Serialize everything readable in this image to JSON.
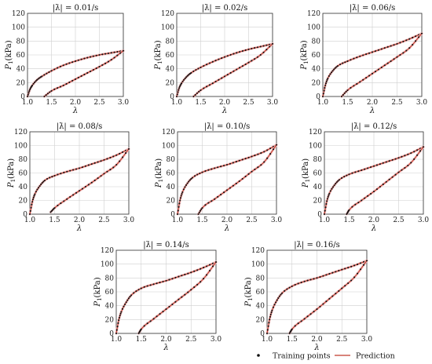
{
  "chart_data": [
    {
      "type": "line",
      "title": "|λ̇| = 0.01/s",
      "xlabel": "λ",
      "ylabel_main": "P",
      "ylabel_sub": "1",
      "ylabel_unit": "(kPa)",
      "xlim": [
        1.0,
        3.0
      ],
      "ylim": [
        0,
        120
      ],
      "xticks": [
        "1.0",
        "1.5",
        "2.0",
        "2.5",
        "3.0"
      ],
      "yticks": [
        "0",
        "20",
        "40",
        "60",
        "80",
        "100",
        "120"
      ],
      "grid": true,
      "series": [
        {
          "name": "Training points",
          "type": "scatter"
        },
        {
          "name": "Prediction",
          "type": "line"
        }
      ],
      "loading": {
        "x": [
          1.0,
          1.05,
          1.1,
          1.2,
          1.3,
          1.5,
          1.75,
          2.0,
          2.25,
          2.5,
          2.75,
          3.0
        ],
        "y": [
          0,
          10,
          16,
          24,
          29,
          37,
          45,
          51,
          56,
          60,
          63,
          66
        ]
      },
      "unloading": {
        "x": [
          1.35,
          1.5,
          1.75,
          2.0,
          2.25,
          2.5,
          2.75,
          3.0
        ],
        "y": [
          0,
          8,
          16,
          25,
          34,
          43,
          53,
          66
        ]
      }
    },
    {
      "type": "line",
      "title": "|λ̇| = 0.02/s",
      "xlabel": "λ",
      "ylabel_main": "P",
      "ylabel_sub": "1",
      "ylabel_unit": "(kPa)",
      "xlim": [
        1.0,
        3.0
      ],
      "ylim": [
        0,
        120
      ],
      "xticks": [
        "1.0",
        "1.5",
        "2.0",
        "2.5",
        "3.0"
      ],
      "yticks": [
        "0",
        "20",
        "40",
        "60",
        "80",
        "100",
        "120"
      ],
      "grid": true,
      "series": [
        {
          "name": "Training points",
          "type": "scatter"
        },
        {
          "name": "Prediction",
          "type": "line"
        }
      ],
      "loading": {
        "x": [
          1.0,
          1.05,
          1.1,
          1.2,
          1.3,
          1.5,
          1.75,
          2.0,
          2.25,
          2.5,
          2.75,
          3.0
        ],
        "y": [
          0,
          12,
          19,
          28,
          34,
          42,
          50,
          57,
          63,
          68,
          72,
          76
        ]
      },
      "unloading": {
        "x": [
          1.35,
          1.5,
          1.75,
          2.0,
          2.25,
          2.5,
          2.75,
          3.0
        ],
        "y": [
          0,
          9,
          19,
          29,
          39,
          49,
          60,
          76
        ]
      }
    },
    {
      "type": "line",
      "title": "|λ̇| = 0.06/s",
      "xlabel": "λ",
      "ylabel_main": "P",
      "ylabel_sub": "1",
      "ylabel_unit": "(kPa)",
      "xlim": [
        1.0,
        3.0
      ],
      "ylim": [
        0,
        120
      ],
      "xticks": [
        "1.0",
        "1.5",
        "2.0",
        "2.5",
        "3.0"
      ],
      "yticks": [
        "0",
        "20",
        "40",
        "60",
        "80",
        "100",
        "120"
      ],
      "grid": true,
      "series": [
        {
          "name": "Training points",
          "type": "scatter"
        },
        {
          "name": "Prediction",
          "type": "line"
        }
      ],
      "loading": {
        "x": [
          1.0,
          1.05,
          1.1,
          1.2,
          1.3,
          1.5,
          1.75,
          2.0,
          2.25,
          2.5,
          2.75,
          3.0
        ],
        "y": [
          0,
          16,
          26,
          37,
          44,
          51,
          58,
          64,
          70,
          76,
          83,
          91
        ]
      },
      "unloading": {
        "x": [
          1.38,
          1.5,
          1.75,
          2.0,
          2.25,
          2.5,
          2.75,
          3.0
        ],
        "y": [
          0,
          9,
          21,
          33,
          45,
          57,
          70,
          91
        ]
      }
    },
    {
      "type": "line",
      "title": "|λ̇| = 0.08/s",
      "xlabel": "λ",
      "ylabel_main": "P",
      "ylabel_sub": "1",
      "ylabel_unit": "(kPa)",
      "xlim": [
        1.0,
        3.0
      ],
      "ylim": [
        0,
        120
      ],
      "xticks": [
        "1.0",
        "1.5",
        "2.0",
        "2.5",
        "3.0"
      ],
      "yticks": [
        "0",
        "20",
        "40",
        "60",
        "80",
        "100",
        "120"
      ],
      "grid": true,
      "series": [
        {
          "name": "Training points",
          "type": "scatter"
        },
        {
          "name": "Prediction",
          "type": "line"
        }
      ],
      "loading": {
        "x": [
          1.0,
          1.05,
          1.1,
          1.2,
          1.3,
          1.5,
          1.75,
          2.0,
          2.25,
          2.5,
          2.75,
          3.0
        ],
        "y": [
          0,
          18,
          29,
          41,
          49,
          56,
          62,
          67,
          73,
          79,
          86,
          95
        ]
      },
      "unloading": {
        "x": [
          1.42,
          1.5,
          1.75,
          2.0,
          2.25,
          2.5,
          2.75,
          3.0
        ],
        "y": [
          3,
          9,
          22,
          34,
          46,
          59,
          72,
          95
        ]
      }
    },
    {
      "type": "line",
      "title": "|λ̇| = 0.10/s",
      "xlabel": "λ",
      "ylabel_main": "P",
      "ylabel_sub": "1",
      "ylabel_unit": "(kPa)",
      "xlim": [
        1.0,
        3.0
      ],
      "ylim": [
        0,
        120
      ],
      "xticks": [
        "1.0",
        "1.5",
        "2.0",
        "2.5",
        "3.0"
      ],
      "yticks": [
        "0",
        "20",
        "40",
        "60",
        "80",
        "100",
        "120"
      ],
      "grid": true,
      "series": [
        {
          "name": "Training points",
          "type": "scatter"
        },
        {
          "name": "Prediction",
          "type": "line"
        }
      ],
      "loading": {
        "x": [
          1.0,
          1.05,
          1.1,
          1.2,
          1.3,
          1.5,
          1.75,
          2.0,
          2.25,
          2.5,
          2.75,
          3.0
        ],
        "y": [
          0,
          20,
          32,
          45,
          53,
          61,
          67,
          72,
          78,
          84,
          91,
          101
        ]
      },
      "unloading": {
        "x": [
          1.42,
          1.5,
          1.75,
          2.0,
          2.25,
          2.5,
          2.75,
          3.0
        ],
        "y": [
          0,
          9,
          22,
          35,
          48,
          62,
          76,
          101
        ]
      }
    },
    {
      "type": "line",
      "title": "|λ̇| = 0.12/s",
      "xlabel": "λ",
      "ylabel_main": "P",
      "ylabel_sub": "1",
      "ylabel_unit": "(kPa)",
      "xlim": [
        1.0,
        3.0
      ],
      "ylim": [
        0,
        120
      ],
      "xticks": [
        "1.0",
        "1.5",
        "2.0",
        "2.5",
        "3.0"
      ],
      "yticks": [
        "0",
        "20",
        "40",
        "60",
        "80",
        "100",
        "120"
      ],
      "grid": true,
      "series": [
        {
          "name": "Training points",
          "type": "scatter"
        },
        {
          "name": "Prediction",
          "type": "line"
        }
      ],
      "loading": {
        "x": [
          1.0,
          1.05,
          1.1,
          1.2,
          1.3,
          1.5,
          1.75,
          2.0,
          2.25,
          2.5,
          2.75,
          3.0
        ],
        "y": [
          0,
          19,
          30,
          42,
          50,
          58,
          64,
          70,
          76,
          82,
          89,
          98
        ]
      },
      "unloading": {
        "x": [
          1.45,
          1.5,
          1.75,
          2.0,
          2.25,
          2.5,
          2.75,
          3.0
        ],
        "y": [
          0,
          6,
          20,
          33,
          47,
          61,
          75,
          98
        ]
      }
    },
    {
      "type": "line",
      "title": "|λ̇| = 0.14/s",
      "xlabel": "λ",
      "ylabel_main": "P",
      "ylabel_sub": "1",
      "ylabel_unit": "(kPa)",
      "xlim": [
        1.0,
        3.0
      ],
      "ylim": [
        0,
        120
      ],
      "xticks": [
        "1.0",
        "1.5",
        "2.0",
        "2.5",
        "3.0"
      ],
      "yticks": [
        "0",
        "20",
        "40",
        "60",
        "80",
        "100",
        "120"
      ],
      "grid": true,
      "series": [
        {
          "name": "Training points",
          "type": "scatter"
        },
        {
          "name": "Prediction",
          "type": "line"
        }
      ],
      "loading": {
        "x": [
          1.0,
          1.05,
          1.1,
          1.2,
          1.3,
          1.5,
          1.75,
          2.0,
          2.25,
          2.5,
          2.75,
          3.0
        ],
        "y": [
          0,
          19,
          31,
          45,
          55,
          65,
          71,
          76,
          82,
          88,
          95,
          103
        ]
      },
      "unloading": {
        "x": [
          1.45,
          1.5,
          1.75,
          2.0,
          2.25,
          2.5,
          2.75,
          3.0
        ],
        "y": [
          0,
          6,
          21,
          35,
          49,
          63,
          79,
          103
        ]
      }
    },
    {
      "type": "line",
      "title": "|λ̇| = 0.16/s",
      "xlabel": "λ",
      "ylabel_main": "P",
      "ylabel_sub": "1",
      "ylabel_unit": "(kPa)",
      "xlim": [
        1.0,
        3.0
      ],
      "ylim": [
        0,
        120
      ],
      "xticks": [
        "1.0",
        "1.5",
        "2.0",
        "2.5",
        "3.0"
      ],
      "yticks": [
        "0",
        "20",
        "40",
        "60",
        "80",
        "100",
        "120"
      ],
      "grid": true,
      "series": [
        {
          "name": "Training points",
          "type": "scatter"
        },
        {
          "name": "Prediction",
          "type": "line"
        }
      ],
      "loading": {
        "x": [
          1.0,
          1.05,
          1.1,
          1.2,
          1.3,
          1.5,
          1.75,
          2.0,
          2.25,
          2.5,
          2.75,
          3.0
        ],
        "y": [
          0,
          20,
          33,
          48,
          58,
          68,
          75,
          80,
          86,
          92,
          98,
          105
        ]
      },
      "unloading": {
        "x": [
          1.45,
          1.5,
          1.75,
          2.0,
          2.25,
          2.5,
          2.75,
          3.0
        ],
        "y": [
          0,
          6,
          21,
          35,
          50,
          65,
          81,
          105
        ]
      }
    }
  ],
  "legend": {
    "training_label": "Training points",
    "prediction_label": "Prediction",
    "placement": "bottom-right"
  },
  "colors": {
    "prediction": "#c0392b",
    "band": "#f2b8b8",
    "points": "#111111",
    "grid": "#cfcfcf",
    "axis": "#333333"
  }
}
